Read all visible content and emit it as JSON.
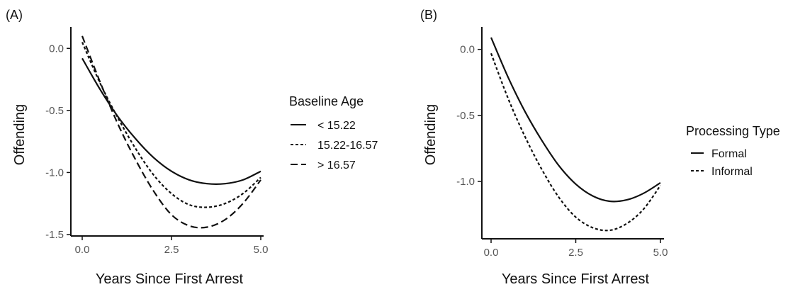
{
  "chart_data": [
    {
      "type": "line",
      "panel_label": "(A)",
      "xlabel": "Years Since First Arrest",
      "ylabel": "Offending",
      "xlim": [
        0,
        5
      ],
      "ylim": [
        -1.5,
        0.15
      ],
      "xticks": [
        0,
        2.5,
        5
      ],
      "xtick_labels": [
        "0.0",
        "2.5",
        "5.0"
      ],
      "yticks": [
        0,
        -0.5,
        -1.0,
        -1.5
      ],
      "ytick_labels": [
        "0.0",
        "-0.5",
        "-1.0",
        "-1.5"
      ],
      "grid": false,
      "legend": {
        "title": "Baseline Age",
        "placement": "right",
        "entries": [
          "< 15.22",
          "15.22-16.57",
          "> 16.57"
        ]
      },
      "series": [
        {
          "name": "< 15.22",
          "style": "solid",
          "x": [
            0,
            0.5,
            1,
            1.5,
            2,
            2.5,
            3,
            3.5,
            4,
            4.5,
            5
          ],
          "y": [
            -0.08,
            -0.33,
            -0.55,
            -0.73,
            -0.88,
            -0.99,
            -1.06,
            -1.09,
            -1.09,
            -1.06,
            -0.99
          ]
        },
        {
          "name": "15.22-16.57",
          "style": "dotted",
          "x": [
            0,
            0.5,
            1,
            1.5,
            2,
            2.5,
            3,
            3.5,
            4,
            4.5,
            5
          ],
          "y": [
            0.05,
            -0.28,
            -0.56,
            -0.81,
            -1.02,
            -1.17,
            -1.26,
            -1.28,
            -1.25,
            -1.17,
            -1.04
          ]
        },
        {
          "name": "> 16.57",
          "style": "dashed",
          "x": [
            0,
            0.5,
            1,
            1.5,
            2,
            2.5,
            3,
            3.5,
            4,
            4.5,
            5
          ],
          "y": [
            0.1,
            -0.27,
            -0.61,
            -0.9,
            -1.15,
            -1.34,
            -1.43,
            -1.44,
            -1.38,
            -1.25,
            -1.06
          ]
        }
      ]
    },
    {
      "type": "line",
      "panel_label": "(B)",
      "xlabel": "Years Since First Arrest",
      "ylabel": "Offending",
      "xlim": [
        0,
        5
      ],
      "ylim": [
        -1.37,
        0.17
      ],
      "xticks": [
        0,
        2.5,
        5
      ],
      "xtick_labels": [
        "0.0",
        "2.5",
        "5.0"
      ],
      "yticks": [
        0,
        -0.5,
        -1.0
      ],
      "ytick_labels": [
        "0.0",
        "-0.5",
        "-1.0"
      ],
      "grid": false,
      "legend": {
        "title": "Processing Type",
        "placement": "right",
        "entries": [
          "Formal",
          "Informal"
        ]
      },
      "series": [
        {
          "name": "Formal",
          "style": "solid",
          "x": [
            0,
            0.5,
            1,
            1.5,
            2,
            2.5,
            3,
            3.5,
            4,
            4.5,
            5
          ],
          "y": [
            0.09,
            -0.21,
            -0.47,
            -0.69,
            -0.88,
            -1.02,
            -1.11,
            -1.15,
            -1.14,
            -1.09,
            -1.01
          ]
        },
        {
          "name": "Informal",
          "style": "dotted",
          "x": [
            0,
            0.5,
            1,
            1.5,
            2,
            2.5,
            3,
            3.5,
            4,
            4.5,
            5
          ],
          "y": [
            -0.03,
            -0.37,
            -0.66,
            -0.91,
            -1.12,
            -1.27,
            -1.35,
            -1.37,
            -1.32,
            -1.21,
            -1.03
          ]
        }
      ]
    }
  ]
}
